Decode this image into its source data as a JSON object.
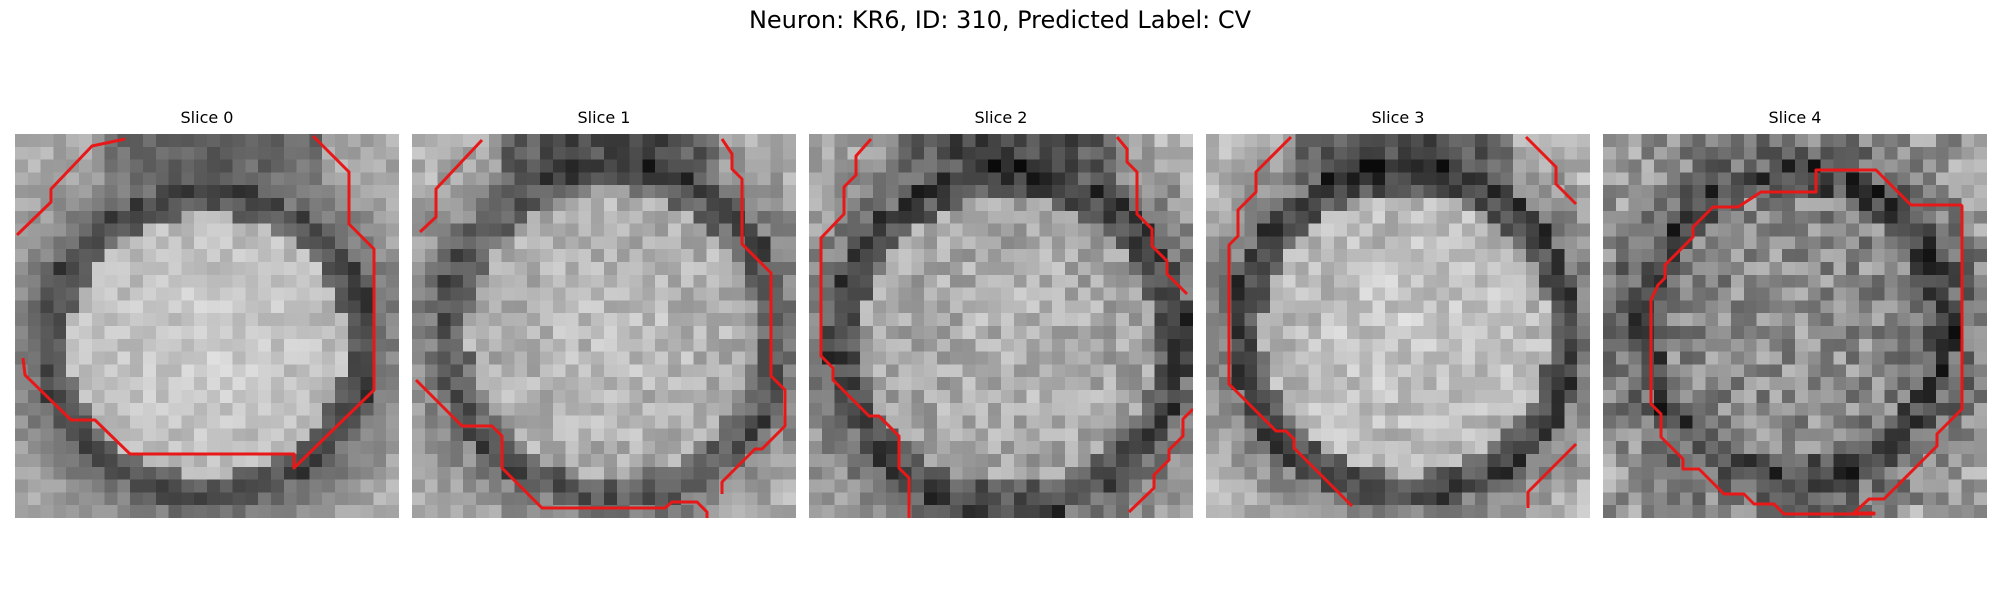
{
  "figure": {
    "title": "Neuron: KR6, ID: 310, Predicted Label: CV"
  },
  "panels": [
    {
      "title": "Slice 0",
      "contour_color": "#e81818"
    },
    {
      "title": "Slice 1",
      "contour_color": "#e81818"
    },
    {
      "title": "Slice 2",
      "contour_color": "#e81818"
    },
    {
      "title": "Slice 3",
      "contour_color": "#e81818"
    },
    {
      "title": "Slice 4",
      "contour_color": "#e81818"
    }
  ]
}
